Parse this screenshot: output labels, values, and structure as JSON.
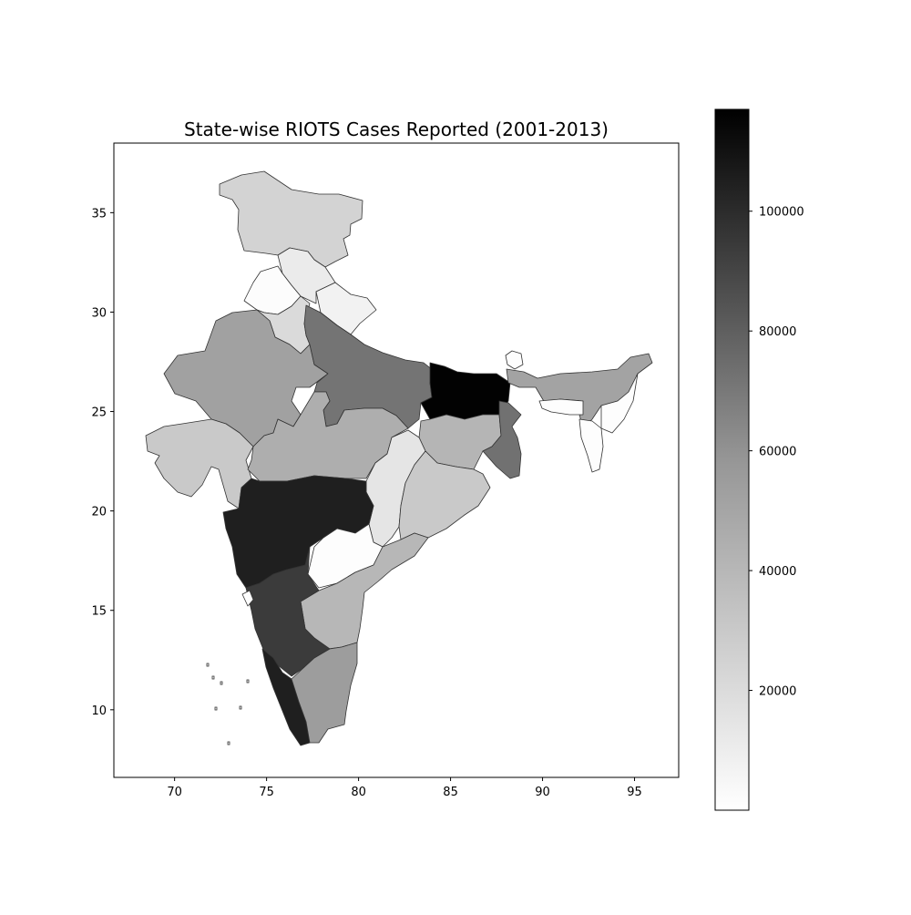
{
  "title": "State-wise RIOTS Cases Reported (2001-2013)",
  "map": {
    "x_axis": {
      "ticks": [
        70,
        75,
        80,
        85,
        90,
        95
      ],
      "range": [
        66.7,
        97.4
      ]
    },
    "y_axis": {
      "ticks": [
        10,
        15,
        20,
        25,
        30,
        35
      ],
      "range": [
        6.6,
        38.5
      ]
    },
    "colormap": "Greys",
    "regions": [
      {
        "name": "Jammu & Kashmir",
        "value": 20000
      },
      {
        "name": "Himachal Pradesh",
        "value": 9000
      },
      {
        "name": "Punjab",
        "value": 1500
      },
      {
        "name": "Uttarakhand",
        "value": 6000
      },
      {
        "name": "Haryana",
        "value": 17000
      },
      {
        "name": "Rajasthan",
        "value": 43000
      },
      {
        "name": "Uttar Pradesh",
        "value": 64000
      },
      {
        "name": "Bihar",
        "value": 116000
      },
      {
        "name": "Gujarat",
        "value": 25000
      },
      {
        "name": "Madhya Pradesh",
        "value": 37000
      },
      {
        "name": "Jharkhand",
        "value": 34000
      },
      {
        "name": "West Bengal",
        "value": 65000
      },
      {
        "name": "Sikkim",
        "value": 1000
      },
      {
        "name": "Assam",
        "value": 42000
      },
      {
        "name": "Arunachal Pradesh",
        "value": 1000
      },
      {
        "name": "Meghalaya",
        "value": 1000
      },
      {
        "name": "Northeast states",
        "value": 1000
      },
      {
        "name": "Chhattisgarh",
        "value": 12000
      },
      {
        "name": "Odisha",
        "value": 25000
      },
      {
        "name": "Maharashtra",
        "value": 103000
      },
      {
        "name": "Telangana",
        "value": 1000
      },
      {
        "name": "Andhra Pradesh",
        "value": 33000
      },
      {
        "name": "Karnataka",
        "value": 90000
      },
      {
        "name": "Goa",
        "value": 1000
      },
      {
        "name": "Kerala",
        "value": 103000
      },
      {
        "name": "Tamil Nadu",
        "value": 45000
      }
    ]
  },
  "colorbar": {
    "min": 0,
    "max": 117000,
    "ticks": [
      20000,
      40000,
      60000,
      80000,
      100000
    ]
  }
}
